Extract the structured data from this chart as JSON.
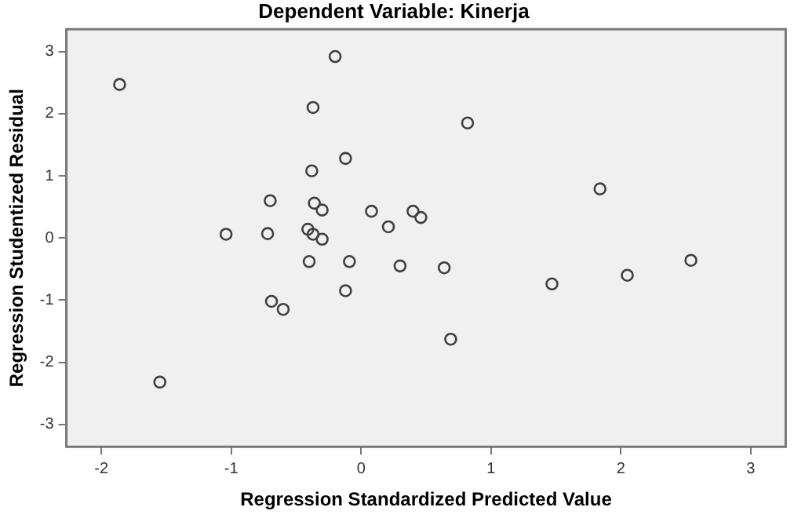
{
  "chart_data": {
    "type": "scatter",
    "title": "Dependent Variable: Kinerja",
    "xlabel": "Regression Standardized Predicted Value",
    "ylabel": "Regression Studentized Residual",
    "x": [
      -1.86,
      -0.2,
      -0.37,
      0.82,
      -0.12,
      -0.38,
      -0.7,
      -0.36,
      -0.3,
      0.08,
      0.4,
      0.46,
      0.21,
      1.84,
      -1.04,
      -0.72,
      -0.41,
      -0.37,
      -0.3,
      -0.4,
      -0.09,
      0.3,
      0.64,
      -0.12,
      -0.69,
      -0.6,
      1.47,
      2.05,
      2.54,
      0.69,
      -1.55
    ],
    "values": [
      2.47,
      2.92,
      2.1,
      1.85,
      1.28,
      1.08,
      0.6,
      0.56,
      0.45,
      0.43,
      0.43,
      0.33,
      0.18,
      0.79,
      0.06,
      0.07,
      0.14,
      0.06,
      -0.02,
      -0.38,
      -0.38,
      -0.45,
      -0.48,
      -0.85,
      -1.02,
      -1.15,
      -0.74,
      -0.6,
      -0.36,
      -1.63,
      -2.32
    ],
    "color": "#404040",
    "marker": "circle",
    "grid": false,
    "legend": false,
    "xlim": [
      -2.27,
      3.27
    ],
    "xticks": [
      -2,
      -1,
      0,
      1,
      2,
      3
    ],
    "ylim": [
      -3.36,
      3.36
    ],
    "yticks": [
      -3,
      -2,
      -1,
      0,
      1,
      2,
      3
    ]
  }
}
